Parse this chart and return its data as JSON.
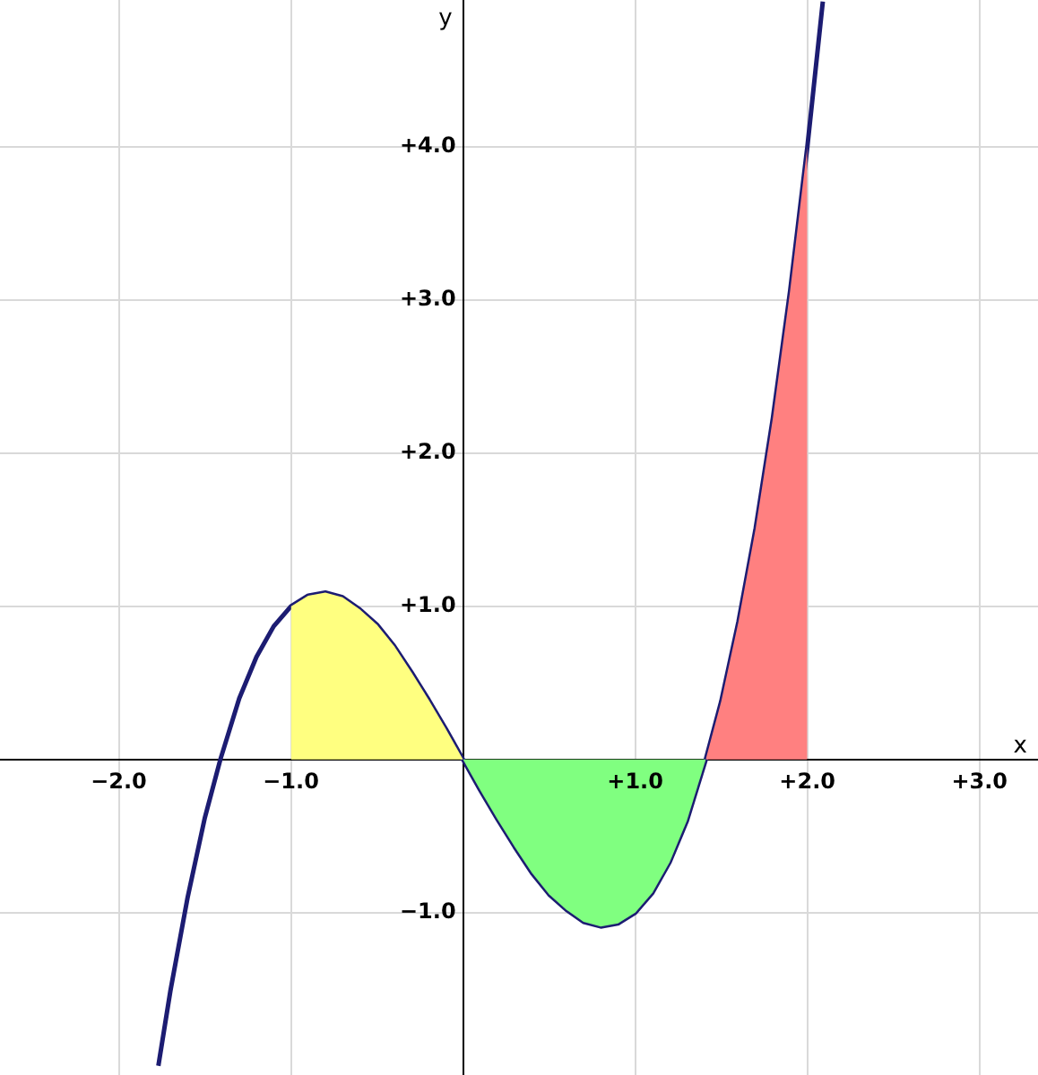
{
  "chart_data": {
    "type": "area",
    "xlabel": "x",
    "ylabel": "y",
    "xlim": [
      -2.69,
      3.34
    ],
    "ylim": [
      -2.06,
      4.96
    ],
    "xticks": [
      {
        "value": -2,
        "label": "−2.0"
      },
      {
        "value": -1,
        "label": "−1.0"
      },
      {
        "value": 1,
        "label": "+1.0"
      },
      {
        "value": 2,
        "label": "+2.0"
      },
      {
        "value": 3,
        "label": "+3.0"
      }
    ],
    "yticks": [
      {
        "value": -1,
        "label": "−1.0"
      },
      {
        "value": 1,
        "label": "+1.0"
      },
      {
        "value": 2,
        "label": "+2.0"
      },
      {
        "value": 3,
        "label": "+3.0"
      },
      {
        "value": 4,
        "label": "+4.0"
      }
    ],
    "grid": true,
    "legend": false,
    "marker": "none",
    "line_style": "solid",
    "series": [
      {
        "type": "area",
        "color": "#ffff80",
        "x": [
          -1,
          -0.9,
          -0.8,
          -0.7,
          -0.6,
          -0.5,
          -0.4,
          -0.3,
          -0.2,
          -0.1,
          0
        ],
        "values": [
          1,
          1.07,
          1.09,
          1.06,
          0.98,
          0.88,
          0.74,
          0.57,
          0.39,
          0.2,
          0
        ]
      },
      {
        "type": "area",
        "color": "#80ff80",
        "x": [
          0,
          0.1,
          0.2,
          0.3,
          0.4,
          0.5,
          0.6,
          0.7,
          0.8,
          0.9,
          1,
          1.1,
          1.2,
          1.3,
          1.41
        ],
        "values": [
          0,
          -0.2,
          -0.39,
          -0.57,
          -0.74,
          -0.88,
          -0.98,
          -1.06,
          -1.09,
          -1.07,
          -1,
          -0.87,
          -0.67,
          -0.4,
          0
        ]
      },
      {
        "type": "area",
        "color": "#ff8080",
        "x": [
          1.41,
          1.5,
          1.6,
          1.7,
          1.8,
          1.9,
          2
        ],
        "values": [
          0,
          0.38,
          0.9,
          1.51,
          2.23,
          3.06,
          4
        ]
      },
      {
        "type": "line",
        "color": "#1c1c72",
        "x": [
          -1.77,
          -1.7,
          -1.6,
          -1.5,
          -1.41,
          -1.3,
          -1.2,
          -1.1,
          -1,
          -0.9,
          -0.8,
          -0.7,
          -0.6,
          -0.5,
          -0.4,
          -0.3,
          -0.2,
          -0.1,
          0,
          0.1,
          0.2,
          0.3,
          0.4,
          0.5,
          0.6,
          0.7,
          0.8,
          0.9,
          1,
          1.1,
          1.2,
          1.3,
          1.41,
          1.5,
          1.6,
          1.7,
          1.8,
          1.9,
          2,
          2.09
        ],
        "values": [
          -2,
          -1.51,
          -0.9,
          -0.38,
          0,
          0.4,
          0.67,
          0.87,
          1,
          1.07,
          1.09,
          1.06,
          0.98,
          0.88,
          0.74,
          0.57,
          0.39,
          0.2,
          0,
          -0.2,
          -0.39,
          -0.57,
          -0.74,
          -0.88,
          -0.98,
          -1.06,
          -1.09,
          -1.07,
          -1,
          -0.87,
          -0.67,
          -0.4,
          0,
          0.38,
          0.9,
          1.51,
          2.23,
          3.06,
          4,
          4.95
        ]
      }
    ]
  }
}
